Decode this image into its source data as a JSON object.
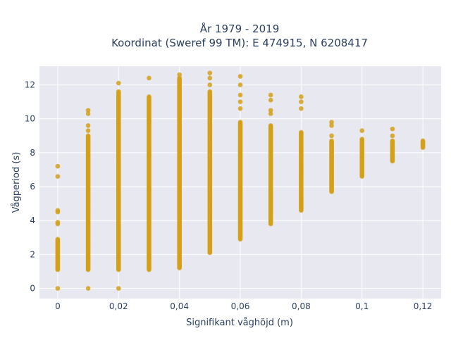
{
  "title_line1": "År 1979 - 2019",
  "title_line2": "Koordinat (Sweref 99 TM): E 474915, N 6208417",
  "colors": {
    "marker": "#D4A017",
    "plot_bg": "#E8E8F0",
    "grid": "#ffffff",
    "text": "#2a3f5f"
  },
  "chart_data": {
    "type": "scatter",
    "xlabel": "Signifikant våghöjd (m)",
    "ylabel": "Vågperiod (s)",
    "xlim": [
      -0.006,
      0.126
    ],
    "ylim": [
      -0.6,
      13.1
    ],
    "grid": true,
    "x_ticks": [
      0,
      0.02,
      0.04,
      0.06,
      0.08,
      0.1,
      0.12
    ],
    "x_tick_labels": [
      "0",
      "0,02",
      "0,04",
      "0,06",
      "0,08",
      "0,1",
      "0,12"
    ],
    "y_ticks": [
      0,
      2,
      4,
      6,
      8,
      10,
      12
    ],
    "y_tick_labels": [
      "0",
      "2",
      "4",
      "6",
      "8",
      "10",
      "12"
    ],
    "columns": [
      {
        "x": 0.0,
        "y_min": 1.1,
        "y_max": 2.9,
        "outliers": [
          0.0,
          3.8,
          3.9,
          4.5,
          4.6,
          6.6,
          7.2
        ]
      },
      {
        "x": 0.01,
        "y_min": 1.1,
        "y_max": 9.0,
        "outliers": [
          0.0,
          9.3,
          9.6,
          10.3,
          10.5
        ]
      },
      {
        "x": 0.02,
        "y_min": 1.1,
        "y_max": 11.6,
        "outliers": [
          0.0,
          12.1
        ]
      },
      {
        "x": 0.03,
        "y_min": 1.1,
        "y_max": 11.3,
        "outliers": [
          12.4
        ]
      },
      {
        "x": 0.04,
        "y_min": 1.2,
        "y_max": 12.4,
        "outliers": [
          12.6
        ]
      },
      {
        "x": 0.05,
        "y_min": 2.1,
        "y_max": 11.6,
        "outliers": [
          12.0,
          12.4,
          12.7
        ]
      },
      {
        "x": 0.06,
        "y_min": 2.9,
        "y_max": 9.8,
        "outliers": [
          10.6,
          11.0,
          11.4,
          12.0,
          12.5
        ]
      },
      {
        "x": 0.07,
        "y_min": 3.8,
        "y_max": 9.6,
        "outliers": [
          10.3,
          10.5,
          11.1,
          11.4
        ]
      },
      {
        "x": 0.08,
        "y_min": 4.6,
        "y_max": 9.2,
        "outliers": [
          10.6,
          11.0,
          11.3
        ]
      },
      {
        "x": 0.09,
        "y_min": 5.7,
        "y_max": 8.7,
        "outliers": [
          9.0,
          9.6,
          9.8
        ]
      },
      {
        "x": 0.1,
        "y_min": 6.6,
        "y_max": 8.8,
        "outliers": [
          9.3
        ]
      },
      {
        "x": 0.11,
        "y_min": 7.5,
        "y_max": 8.7,
        "outliers": [
          9.0,
          9.4
        ]
      },
      {
        "x": 0.12,
        "y_min": 8.3,
        "y_max": 8.7,
        "outliers": []
      }
    ]
  }
}
